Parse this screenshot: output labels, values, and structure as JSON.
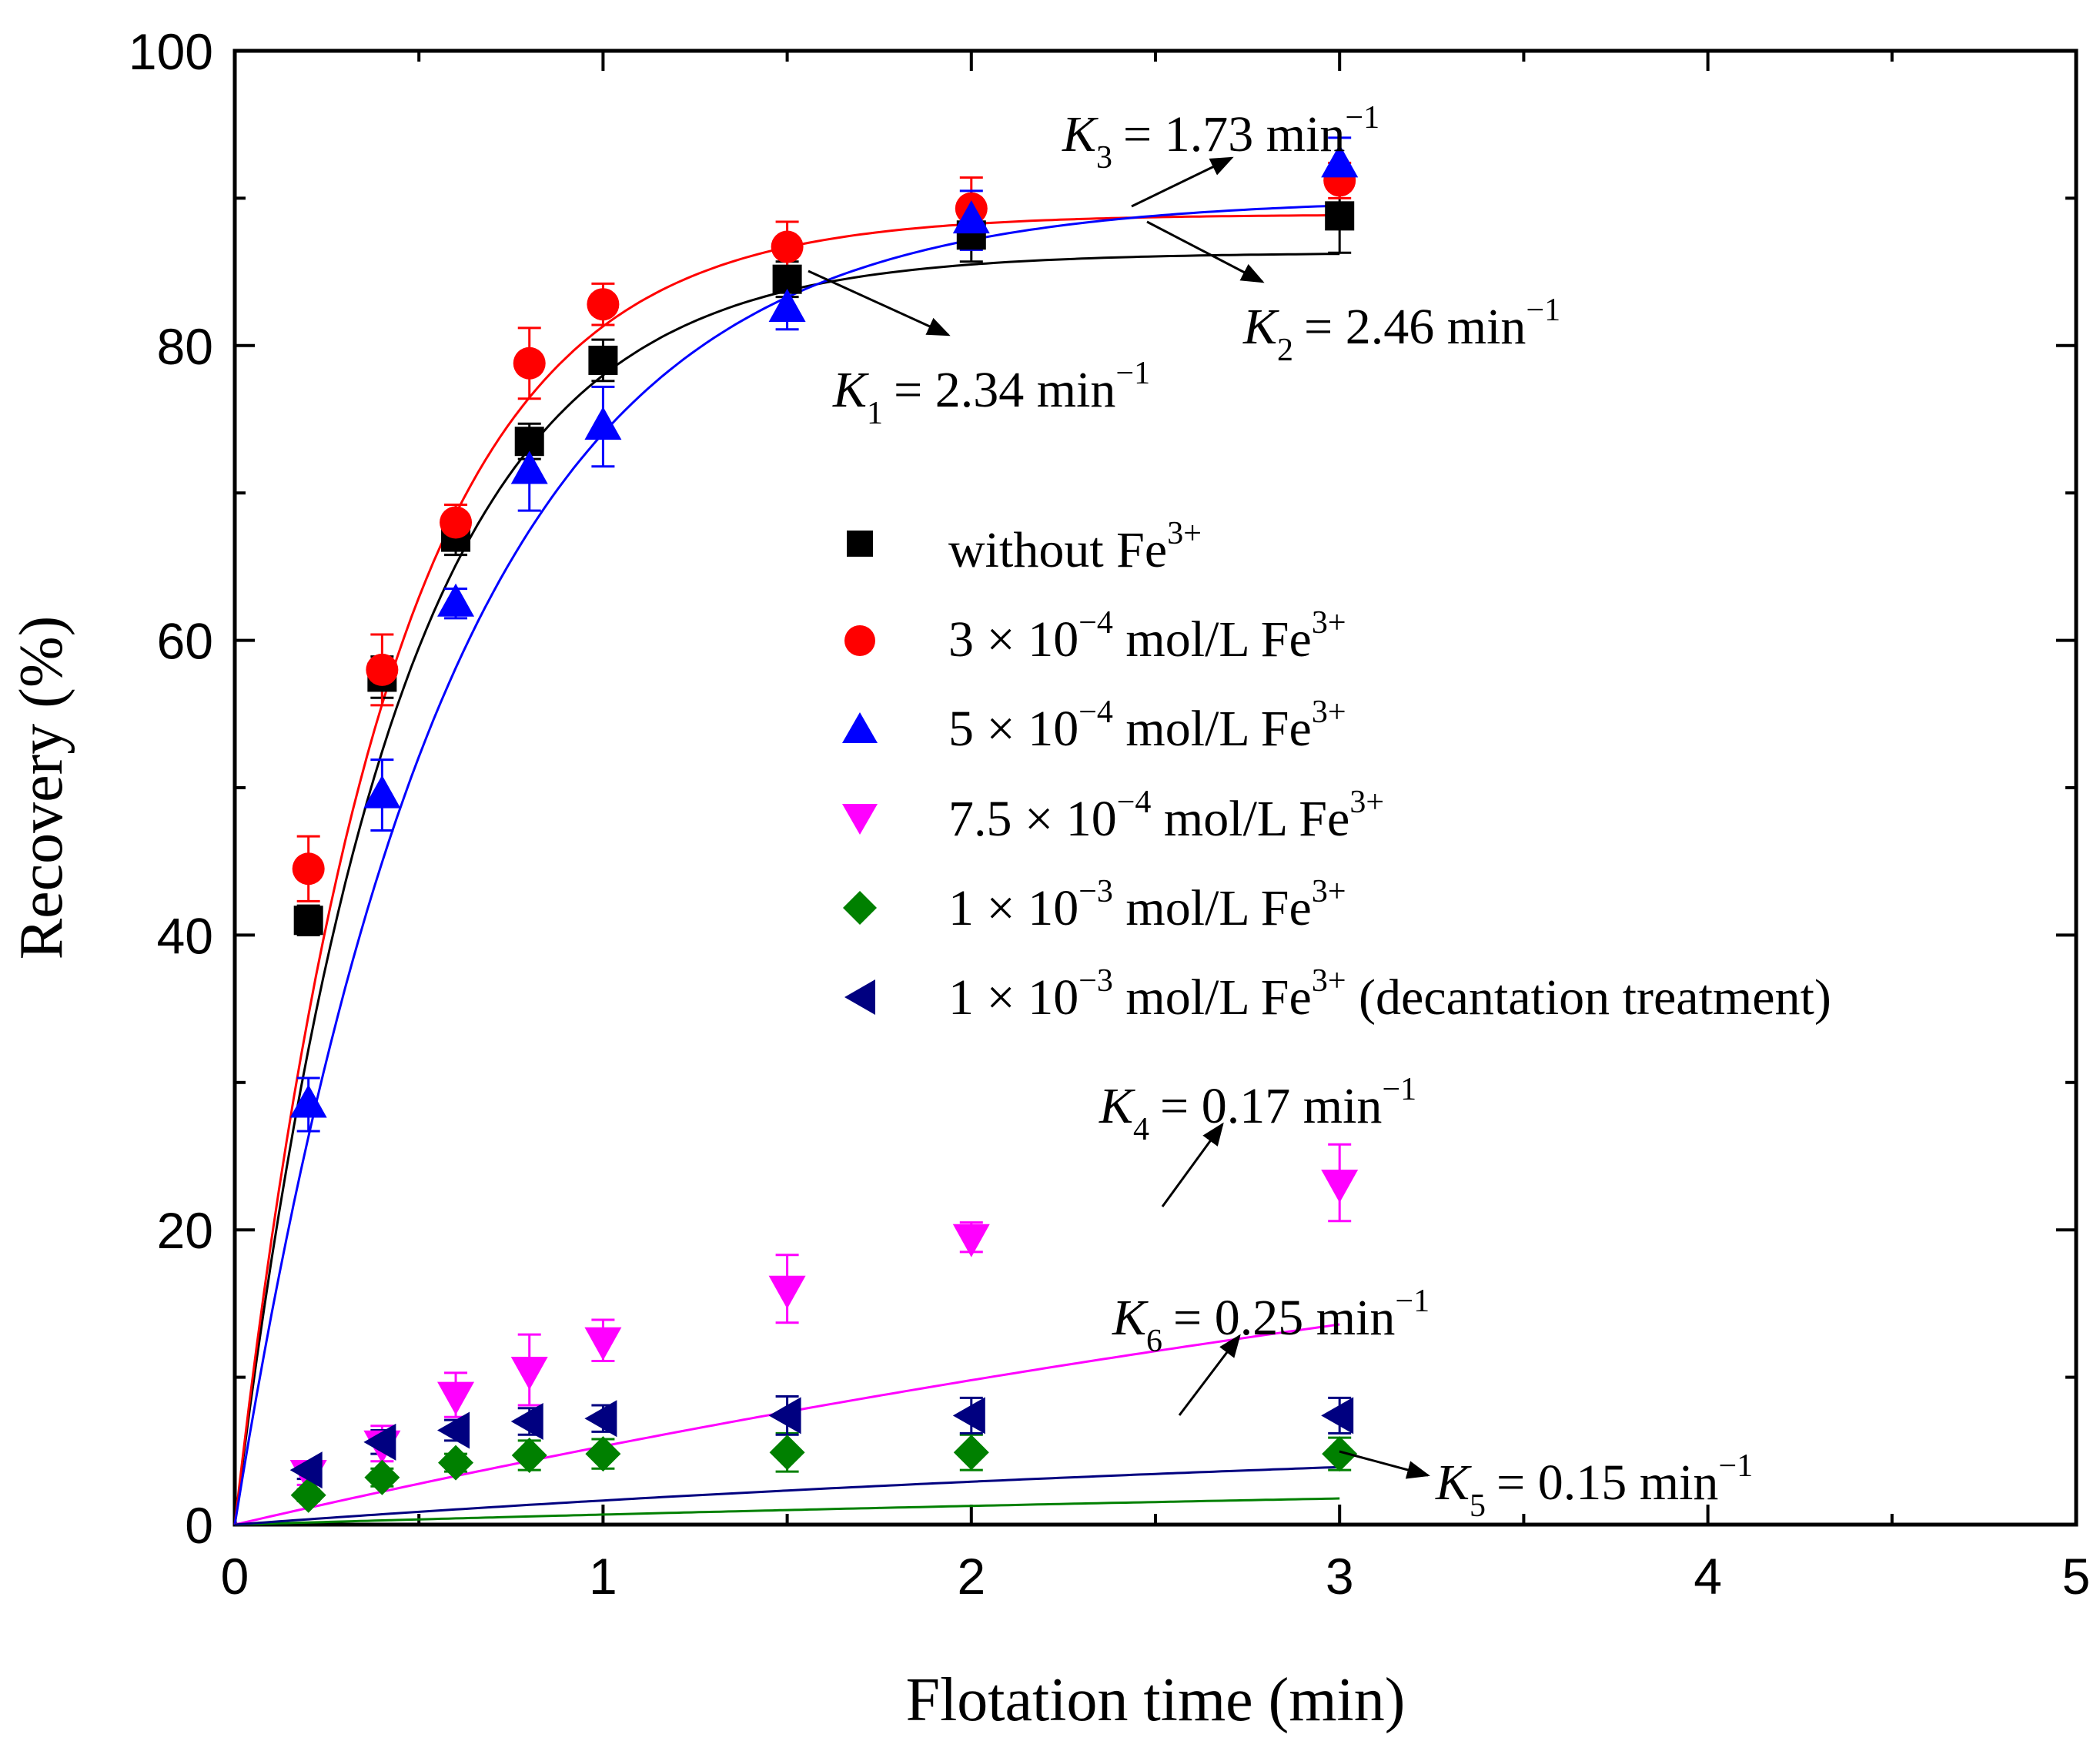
{
  "chart_data": {
    "type": "scatter",
    "xlabel": "Flotation time (min)",
    "ylabel": "Recovery (%)",
    "xlim": [
      0,
      5
    ],
    "ylim": [
      0,
      100
    ],
    "xticks": [
      0,
      1,
      2,
      3,
      4,
      5
    ],
    "yticks": [
      0,
      20,
      40,
      60,
      80,
      100
    ],
    "grid": false,
    "legend_position": "center",
    "x": [
      0,
      0.2,
      0.4,
      0.6,
      0.8,
      1,
      1.5,
      2,
      3
    ],
    "series": [
      {
        "name": "without Fe3+",
        "legend": {
          "pre": "without Fe",
          "sup": "3+"
        },
        "marker": "square",
        "color": "#000000",
        "values": [
          0,
          41.0,
          57.5,
          67.0,
          73.5,
          79.0,
          84.5,
          87.5,
          88.8
        ],
        "errors": [
          0,
          1.0,
          1.4,
          1.2,
          1.2,
          1.4,
          1.2,
          1.8,
          2.5
        ],
        "fit": {
          "k": 2.34,
          "rmax": 86.3
        }
      },
      {
        "name": "3 × 10−4 mol/L Fe3+",
        "legend": {
          "pre": "3 × 10",
          "exp": "−4",
          "mid": " mol/L Fe",
          "sup": "3+",
          "post": ""
        },
        "marker": "circle",
        "color": "#ff0000",
        "values": [
          0,
          44.5,
          58.0,
          68.0,
          78.8,
          82.8,
          86.7,
          89.3,
          91.2
        ],
        "errors": [
          0,
          2.2,
          2.4,
          1.2,
          2.4,
          1.4,
          1.7,
          2.1,
          1.2
        ],
        "fit": {
          "k": 2.46,
          "rmax": 88.9
        }
      },
      {
        "name": "5 × 10−4 mol/L Fe3+",
        "legend": {
          "pre": "5 × 10",
          "exp": "−4",
          "mid": " mol/L Fe",
          "sup": "3+",
          "post": ""
        },
        "marker": "triangle-up",
        "color": "#0000ff",
        "values": [
          0,
          28.5,
          49.5,
          62.5,
          71.5,
          74.5,
          82.5,
          88.5,
          92.3
        ],
        "errors": [
          0,
          1.8,
          2.4,
          1.0,
          2.7,
          2.7,
          1.4,
          2.0,
          1.8
        ],
        "fit": {
          "k": 1.73,
          "rmax": 90.0
        }
      },
      {
        "name": "7.5 × 10−4 mol/L Fe3+",
        "legend": {
          "pre": "7.5 × 10",
          "exp": "−4",
          "mid": " mol/L Fe",
          "sup": "3+",
          "post": ""
        },
        "marker": "triangle-down",
        "color": "#ff00ff",
        "values": [
          0,
          3.5,
          5.5,
          8.8,
          10.5,
          12.5,
          16.0,
          19.5,
          23.2
        ],
        "errors": [
          0,
          0.8,
          1.2,
          1.5,
          2.4,
          1.4,
          2.3,
          1.0,
          2.6
        ],
        "fit": {
          "k": 0.17,
          "rmax": 34.0
        }
      },
      {
        "name": "1 × 10−3 mol/L Fe3+",
        "legend": {
          "pre": "1 × 10",
          "exp": "−3",
          "mid": " mol/L Fe",
          "sup": "3+",
          "post": ""
        },
        "marker": "diamond",
        "color": "#008000",
        "values": [
          0,
          2.0,
          3.2,
          4.2,
          4.7,
          4.8,
          4.9,
          4.9,
          4.8
        ],
        "errors": [
          0,
          0.4,
          0.6,
          0.6,
          1.0,
          1.0,
          1.3,
          1.2,
          1.1
        ],
        "fit": {
          "k": 0.15,
          "rmax": 4.9
        }
      },
      {
        "name": "1 × 10−3 mol/L Fe3+ (decantation treatment)",
        "legend": {
          "pre": "1 × 10",
          "exp": "−3",
          "mid": " mol/L Fe",
          "sup": "3+",
          "post": " (decantation treatment)"
        },
        "marker": "triangle-left",
        "color": "#000080",
        "values": [
          0,
          3.7,
          5.6,
          6.4,
          7.0,
          7.2,
          7.4,
          7.4,
          7.4
        ],
        "errors": [
          0,
          0.6,
          0.8,
          0.7,
          0.9,
          0.9,
          1.3,
          1.2,
          1.2
        ],
        "fit": {
          "k": 0.25,
          "rmax": 7.4
        }
      }
    ],
    "annotations": [
      {
        "label": "K",
        "sub": "1",
        "value": "= 2.34 min",
        "sup": "−1"
      },
      {
        "label": "K",
        "sub": "2",
        "value": "= 2.46 min",
        "sup": "−1"
      },
      {
        "label": "K",
        "sub": "3",
        "value": "= 1.73 min",
        "sup": "−1"
      },
      {
        "label": "K",
        "sub": "4",
        "value": "= 0.17 min",
        "sup": "−1"
      },
      {
        "label": "K",
        "sub": "5",
        "value": "= 0.15 min",
        "sup": "−1"
      },
      {
        "label": "K",
        "sub": "6",
        "value": "= 0.25 min",
        "sup": "−1"
      }
    ]
  }
}
